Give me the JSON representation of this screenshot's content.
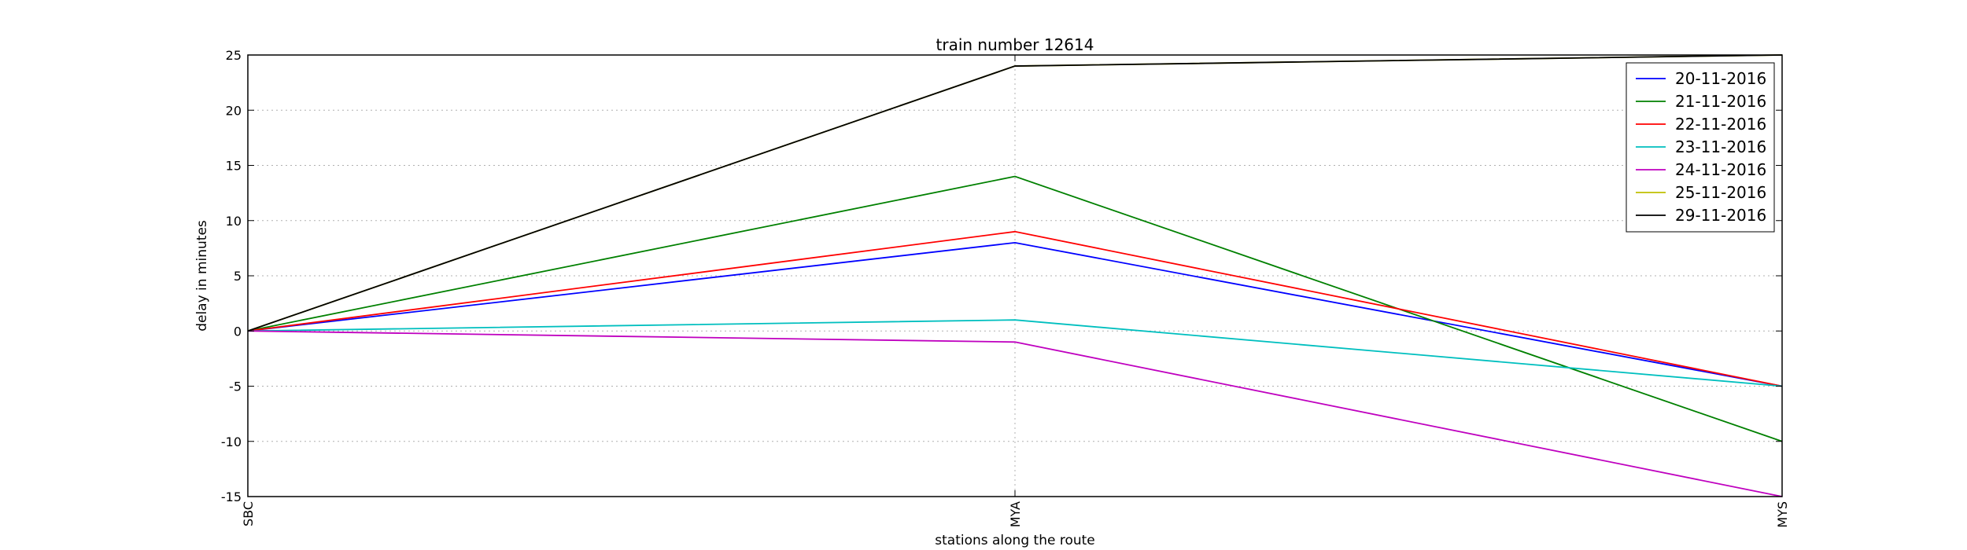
{
  "chart_data": {
    "type": "line",
    "title": "train number 12614",
    "xlabel": "stations along the route",
    "ylabel": "delay in minutes",
    "categories": [
      "SBC",
      "MYA",
      "MYS"
    ],
    "ylim": [
      -15,
      25
    ],
    "yticks": [
      -15,
      -10,
      -5,
      0,
      5,
      10,
      15,
      20,
      25
    ],
    "grid": true,
    "legend_position": "top-right",
    "series": [
      {
        "name": "20-11-2016",
        "color": "#0000ff",
        "values": [
          0,
          8,
          -5
        ]
      },
      {
        "name": "21-11-2016",
        "color": "#008000",
        "values": [
          0,
          14,
          -10
        ]
      },
      {
        "name": "22-11-2016",
        "color": "#ff0000",
        "values": [
          0,
          9,
          -5
        ]
      },
      {
        "name": "23-11-2016",
        "color": "#00bfbf",
        "values": [
          0,
          1,
          -5
        ]
      },
      {
        "name": "24-11-2016",
        "color": "#bf00bf",
        "values": [
          0,
          -1,
          -15
        ]
      },
      {
        "name": "25-11-2016",
        "color": "#bfbf00",
        "values": [
          0,
          24,
          25
        ]
      },
      {
        "name": "29-11-2016",
        "color": "#000000",
        "values": [
          0,
          24,
          25
        ]
      }
    ]
  }
}
